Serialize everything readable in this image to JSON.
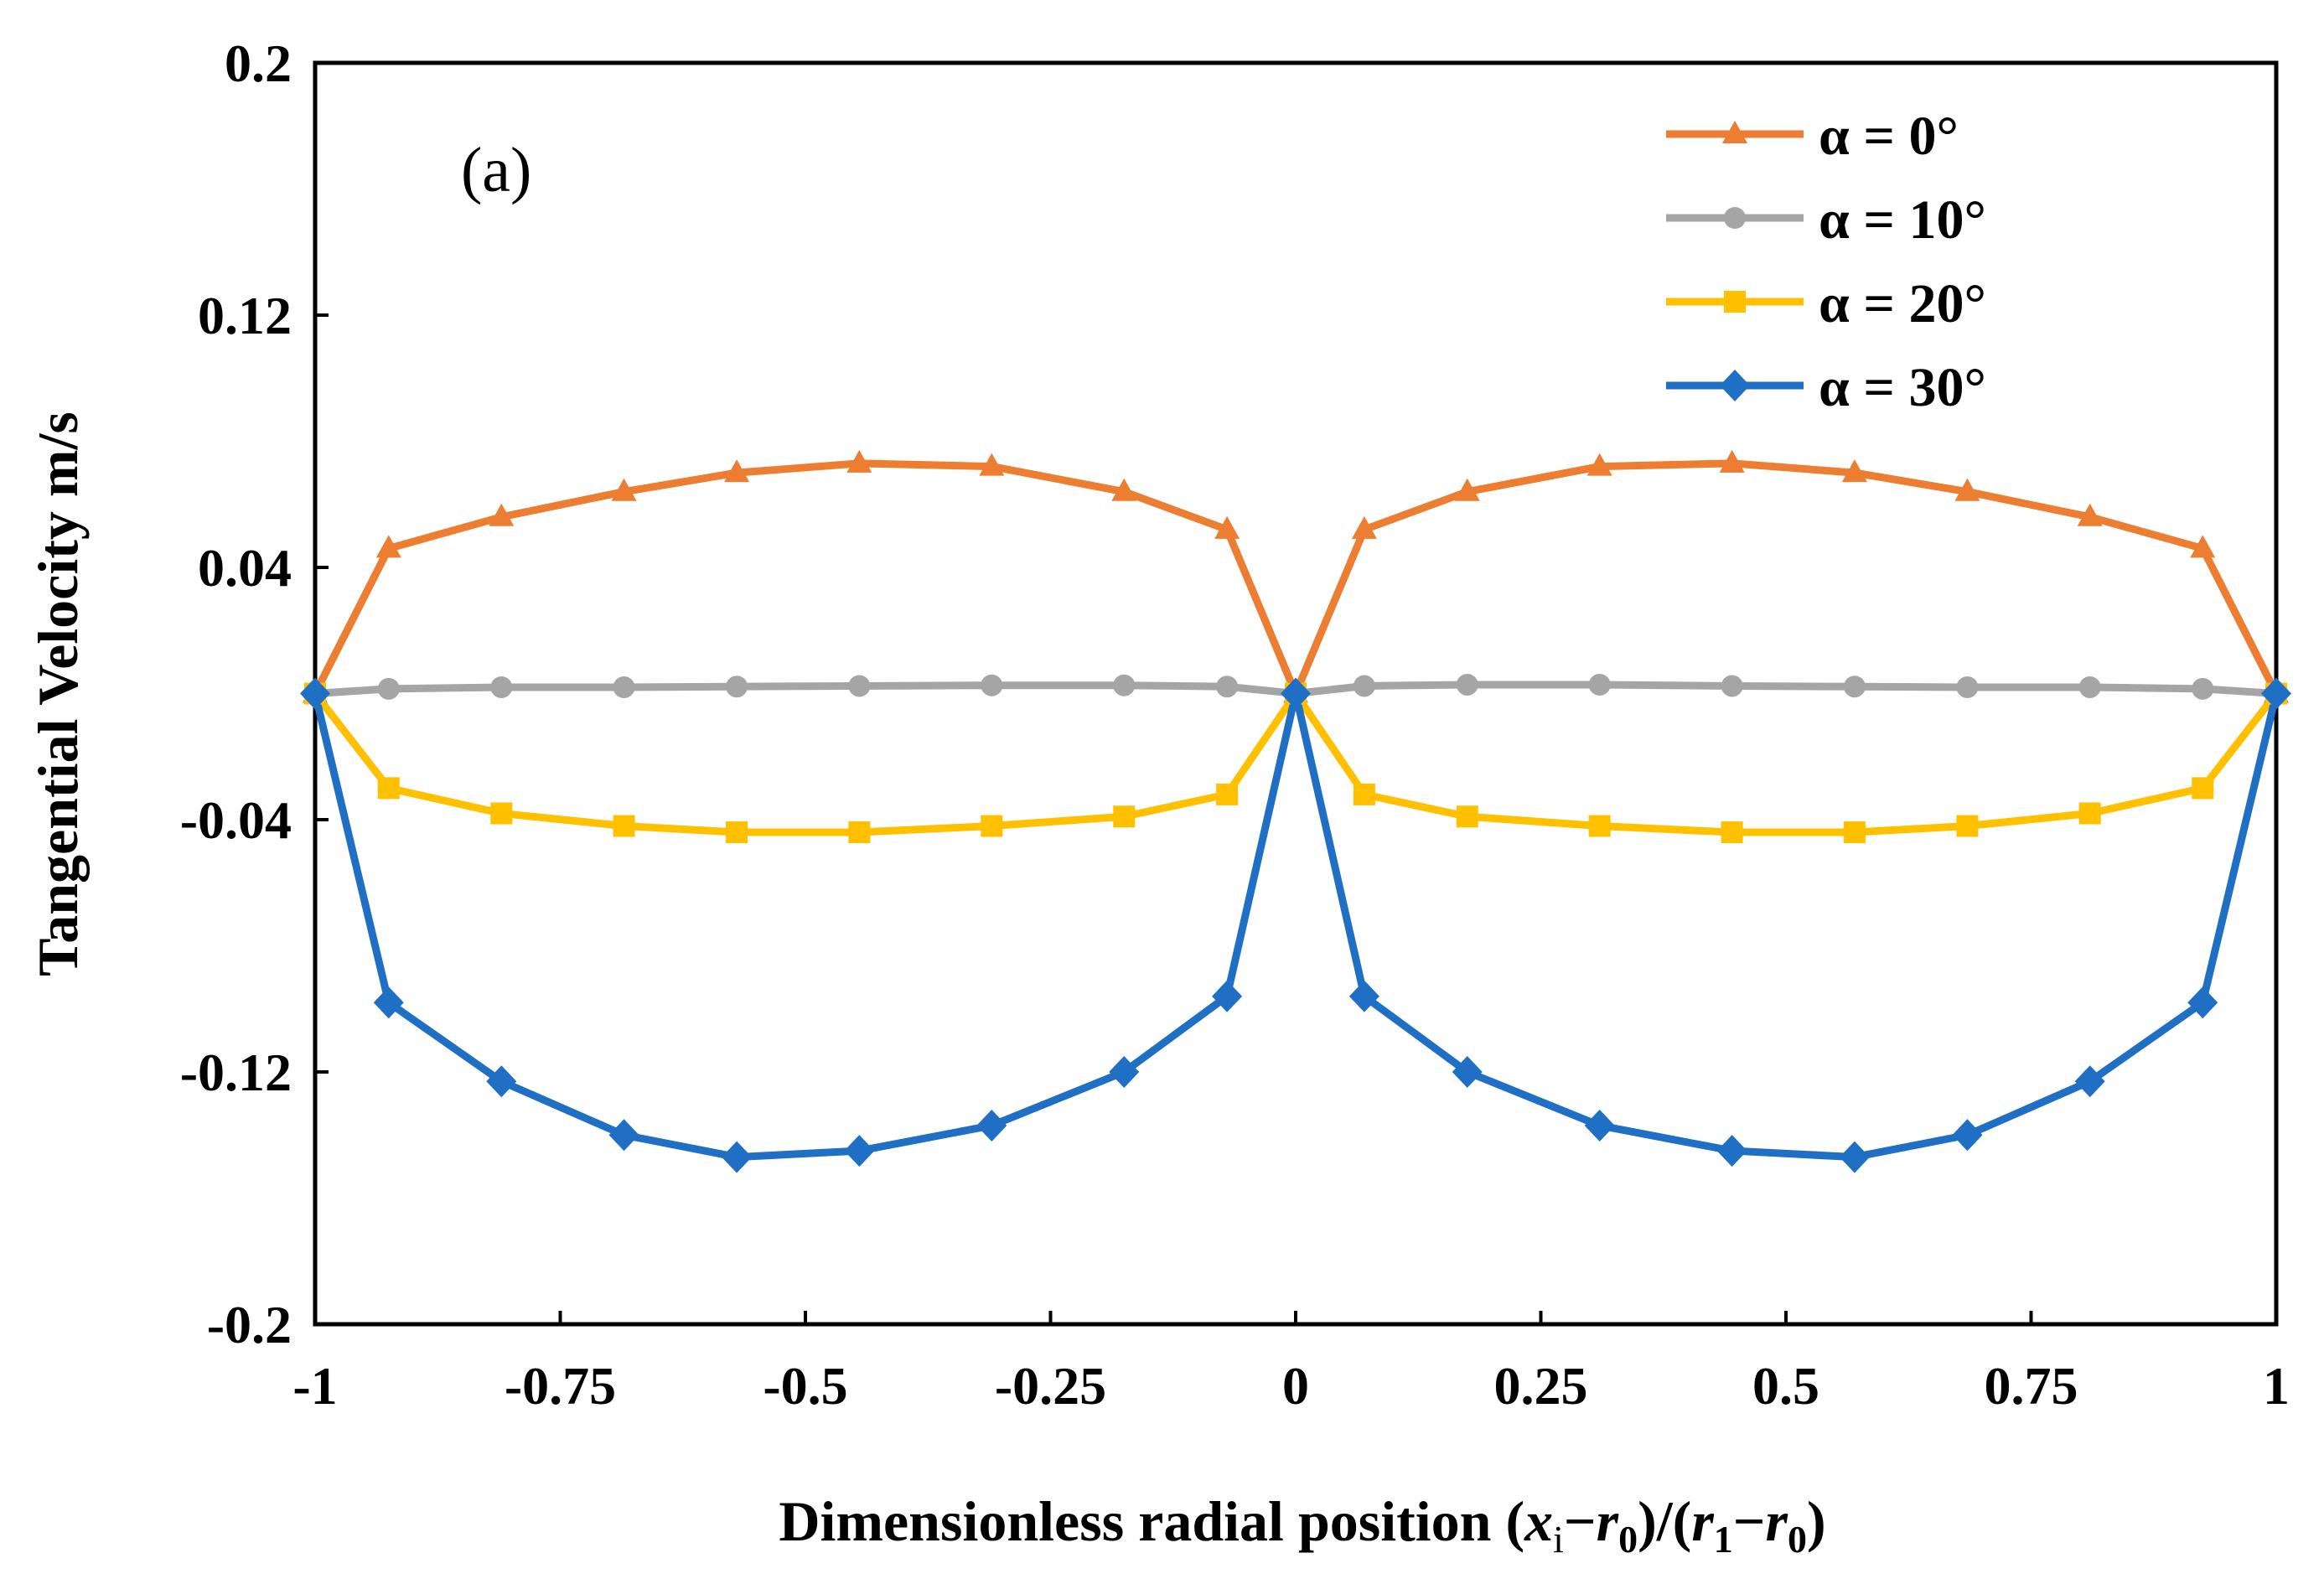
{
  "chart_data": {
    "type": "line",
    "panel_label": "(a)",
    "ylabel": "Tangential Velocity m/s",
    "xlabel": {
      "prefix": "Dimensionless radial position (",
      "x_var": "x",
      "x_sub": "i",
      "minus1": "−",
      "r_var_a": "r",
      "r_sub_a": "0",
      "mid": ")/(",
      "r_var_b": "r",
      "r_sub_b": "1",
      "minus2": "−",
      "r_var_c": "r",
      "r_sub_c": "0",
      "suffix": ")"
    },
    "xlim": [
      -1,
      1
    ],
    "ylim": [
      -0.2,
      0.2
    ],
    "x_ticks": [
      -1,
      -0.75,
      -0.5,
      -0.25,
      0,
      0.25,
      0.5,
      0.75,
      1
    ],
    "x_tick_labels": [
      "-1",
      "-0.75",
      "-0.5",
      "-0.25",
      "0",
      "0.25",
      "0.5",
      "0.75",
      "1"
    ],
    "y_ticks": [
      0.2,
      0.12,
      0.04,
      -0.04,
      -0.12,
      -0.2
    ],
    "y_tick_labels": [
      "0.2",
      "0.12",
      "0.04",
      "-0.04",
      "-0.12",
      "-0.2"
    ],
    "grid": false,
    "legend_position": "top-right",
    "x": [
      -1,
      -0.925,
      -0.81,
      -0.685,
      -0.57,
      -0.445,
      -0.31,
      -0.175,
      -0.07,
      0,
      0.07,
      0.175,
      0.31,
      0.445,
      0.57,
      0.685,
      0.81,
      0.925,
      1
    ],
    "series": [
      {
        "name": "α = 0°",
        "color": "#ED7D31",
        "marker": "triangle",
        "values": [
          0,
          0.046,
          0.056,
          0.064,
          0.07,
          0.073,
          0.072,
          0.064,
          0.052,
          0,
          0.052,
          0.064,
          0.072,
          0.073,
          0.07,
          0.064,
          0.056,
          0.046,
          0
        ]
      },
      {
        "name": "α = 10°",
        "color": "#A5A5A5",
        "marker": "circle",
        "values": [
          0,
          0.0015,
          0.002,
          0.002,
          0.0022,
          0.0024,
          0.0026,
          0.0026,
          0.0022,
          0,
          0.0024,
          0.0028,
          0.0028,
          0.0024,
          0.0022,
          0.002,
          0.002,
          0.0015,
          0
        ]
      },
      {
        "name": "α = 20°",
        "color": "#FFC000",
        "marker": "square",
        "values": [
          0,
          -0.03,
          -0.038,
          -0.042,
          -0.044,
          -0.044,
          -0.042,
          -0.039,
          -0.032,
          0,
          -0.032,
          -0.039,
          -0.042,
          -0.044,
          -0.044,
          -0.042,
          -0.038,
          -0.03,
          0
        ]
      },
      {
        "name": "α = 30°",
        "color": "#1F6FC5",
        "marker": "diamond",
        "values": [
          0,
          -0.098,
          -0.123,
          -0.14,
          -0.147,
          -0.145,
          -0.137,
          -0.12,
          -0.096,
          0,
          -0.096,
          -0.12,
          -0.137,
          -0.145,
          -0.147,
          -0.14,
          -0.123,
          -0.098,
          0
        ]
      }
    ]
  }
}
